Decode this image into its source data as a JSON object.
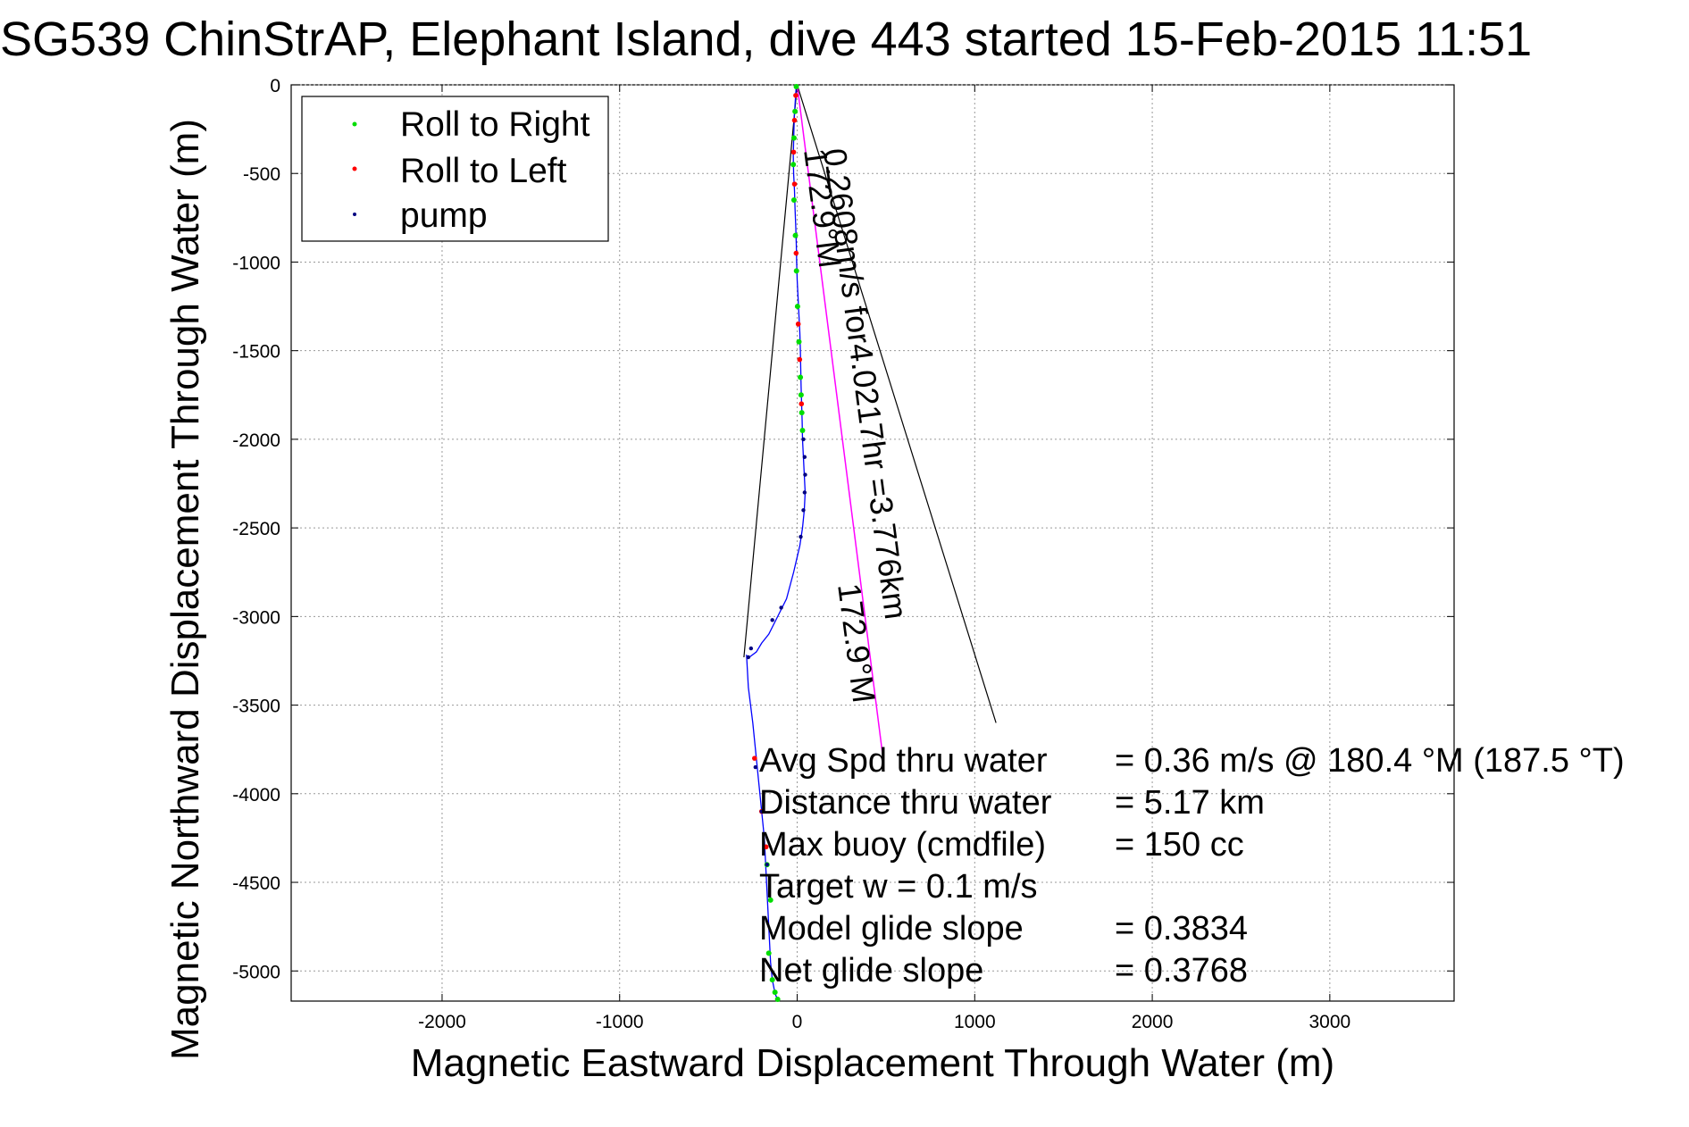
{
  "chart_data": {
    "type": "scatter",
    "title": "SG539 ChinStrAP, Elephant Island, dive 443 started 15-Feb-2015 11:51",
    "xlabel": "Magnetic Eastward Displacement Through Water (m)",
    "ylabel": "Magnetic Northward Displacement Through Water (m)",
    "xlim": [
      -2850,
      3700
    ],
    "ylim": [
      -5170,
      0
    ],
    "xticks": [
      -2000,
      -1000,
      0,
      1000,
      2000,
      3000
    ],
    "yticks": [
      0,
      -500,
      -1000,
      -1500,
      -2000,
      -2500,
      -3000,
      -3500,
      -4000,
      -4500,
      -5000
    ],
    "xtick_labels": [
      "-2000",
      "-1000",
      "0",
      "1000",
      "2000",
      "3000"
    ],
    "ytick_labels": [
      "0",
      "-500",
      "-1000",
      "-1500",
      "-2000",
      "-2500",
      "-3000",
      "-3500",
      "-4000",
      "-4500",
      "-5000"
    ],
    "grid": true,
    "legend_position": "top-left",
    "legend": [
      {
        "label": "Roll to Right",
        "color": "#00dd00"
      },
      {
        "label": "Roll to Left",
        "color": "#ff0000"
      },
      {
        "label": "pump",
        "color": "#000080"
      }
    ],
    "track": {
      "color": "#0000ff",
      "x": [
        -5,
        -10,
        -15,
        -18,
        -20,
        -22,
        -20,
        -15,
        -12,
        -8,
        -5,
        -3,
        0,
        5,
        10,
        15,
        18,
        20,
        22,
        25,
        28,
        30,
        35,
        40,
        45,
        40,
        30,
        15,
        -20,
        -60,
        -110,
        -160,
        -200,
        -230,
        -270,
        -285,
        -275,
        -250,
        -235,
        -225,
        -215,
        -205,
        -195,
        -185,
        -180,
        -175,
        -170,
        -165,
        -160,
        -155,
        -150,
        -145,
        -140,
        -130,
        -120,
        -100
      ],
      "y": [
        0,
        -80,
        -160,
        -240,
        -320,
        -400,
        -500,
        -600,
        -700,
        -800,
        -900,
        -1000,
        -1100,
        -1200,
        -1300,
        -1400,
        -1500,
        -1600,
        -1700,
        -1800,
        -1900,
        -2000,
        -2100,
        -2200,
        -2300,
        -2400,
        -2500,
        -2600,
        -2750,
        -2900,
        -3000,
        -3100,
        -3150,
        -3200,
        -3230,
        -3220,
        -3400,
        -3600,
        -3750,
        -3850,
        -3950,
        -4050,
        -4150,
        -4250,
        -4350,
        -4450,
        -4550,
        -4650,
        -4750,
        -4850,
        -4950,
        -5000,
        -5050,
        -5100,
        -5140,
        -5170
      ]
    },
    "roll_right": {
      "x": [
        -5,
        -12,
        -18,
        -22,
        -18,
        -10,
        -4,
        2,
        10,
        18,
        22,
        26,
        30,
        -150,
        -170,
        -160,
        -140,
        -125,
        -110
      ],
      "y": [
        -10,
        -150,
        -300,
        -450,
        -650,
        -850,
        -1050,
        -1250,
        -1450,
        -1650,
        -1750,
        -1850,
        -1950,
        -4600,
        -4400,
        -4900,
        -5050,
        -5120,
        -5160
      ]
    },
    "roll_left": {
      "x": [
        -8,
        -15,
        -20,
        -15,
        -6,
        6,
        14,
        24,
        -240,
        -200,
        -175
      ],
      "y": [
        -60,
        -200,
        -380,
        -560,
        -950,
        -1350,
        -1550,
        -1800,
        -3800,
        -4100,
        -4300
      ]
    },
    "pump": {
      "x": [
        35,
        42,
        45,
        42,
        35,
        20,
        -90,
        -140,
        -260,
        -275,
        -235,
        -200,
        -170
      ],
      "y": [
        -2000,
        -2100,
        -2200,
        -2300,
        -2400,
        -2550,
        -2950,
        -3020,
        -3180,
        -3230,
        -3850,
        -4100,
        -4400
      ]
    },
    "lines": {
      "black_outline": {
        "color": "#000000",
        "x": [
          0,
          -300,
          0,
          1120
        ],
        "y": [
          0,
          -3230,
          0,
          -3600
        ]
      },
      "magenta_heading": {
        "color": "#ff00ff",
        "x": [
          0,
          480
        ],
        "y": [
          0,
          -3770
        ]
      }
    },
    "annotations": {
      "heading_short": "172.9°M",
      "speed_line": "0.2608m/s for4.0217hr =3.776km",
      "heading_long": "172.9°M"
    },
    "stats": [
      {
        "label": "Avg Spd thru water",
        "value": "=  0.36 m/s @ 180.4 °M (187.5 °T)"
      },
      {
        "label": "Distance thru water",
        "value": "=  5.17 km"
      },
      {
        "label": "Max buoy (cmdfile)",
        "value": "= 150 cc"
      },
      {
        "label": "Target w    = 0.1 m/s",
        "value": ""
      },
      {
        "label": "Model glide slope",
        "value": "= 0.3834"
      },
      {
        "label": "Net glide slope",
        "value": "= 0.3768"
      }
    ]
  }
}
